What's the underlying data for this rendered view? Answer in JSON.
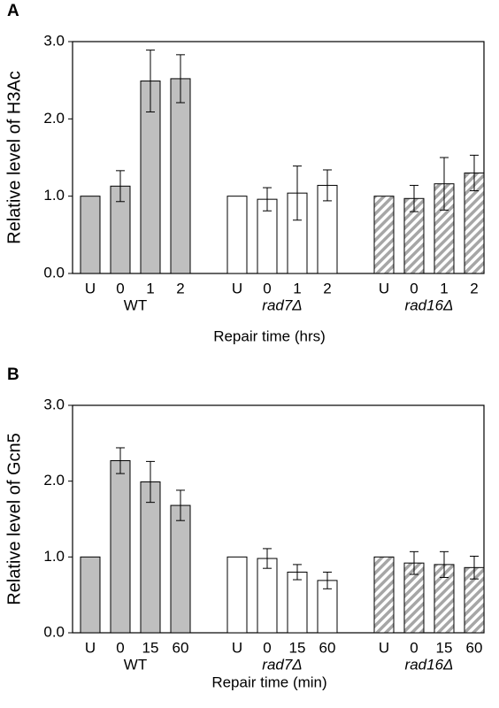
{
  "chart_data": [
    {
      "type": "bar",
      "panel": "A",
      "ylabel": "Relative level of H3Ac",
      "xlabel": "Repair time (hrs)",
      "ylim": [
        0,
        3
      ],
      "yticks": [
        {
          "value": 0,
          "label": "0.0"
        },
        {
          "value": 1,
          "label": "1.0"
        },
        {
          "value": 2,
          "label": "2.0"
        },
        {
          "value": 3,
          "label": "3.0"
        }
      ],
      "groups": [
        {
          "name": "WT",
          "color": "#bfbfbf",
          "hatch": false,
          "categories": [
            "U",
            "0",
            "1",
            "2"
          ],
          "values": [
            1.0,
            1.13,
            2.49,
            2.52
          ],
          "errors": [
            null,
            0.2,
            0.4,
            0.31
          ]
        },
        {
          "name": "rad7Δ",
          "color": "#ffffff",
          "hatch": false,
          "categories": [
            "U",
            "0",
            "1",
            "2"
          ],
          "values": [
            1.0,
            0.96,
            1.04,
            1.14
          ],
          "errors": [
            null,
            0.15,
            0.35,
            0.2
          ]
        },
        {
          "name": "rad16Δ",
          "color": "#a6a6a6",
          "hatch": true,
          "categories": [
            "U",
            "0",
            "1",
            "2"
          ],
          "values": [
            1.0,
            0.97,
            1.16,
            1.3
          ],
          "errors": [
            null,
            0.17,
            0.34,
            0.23
          ]
        }
      ]
    },
    {
      "type": "bar",
      "panel": "B",
      "ylabel": "Relative level of Gcn5",
      "xlabel": "Repair time (min)",
      "ylim": [
        0,
        3
      ],
      "yticks": [
        {
          "value": 0,
          "label": "0.0"
        },
        {
          "value": 1,
          "label": "1.0"
        },
        {
          "value": 2,
          "label": "2.0"
        },
        {
          "value": 3,
          "label": "3.0"
        }
      ],
      "groups": [
        {
          "name": "WT",
          "color": "#bfbfbf",
          "hatch": false,
          "categories": [
            "U",
            "0",
            "15",
            "60"
          ],
          "values": [
            1.0,
            2.27,
            1.99,
            1.68
          ],
          "errors": [
            null,
            0.17,
            0.27,
            0.2
          ]
        },
        {
          "name": "rad7Δ",
          "color": "#ffffff",
          "hatch": false,
          "categories": [
            "U",
            "0",
            "15",
            "60"
          ],
          "values": [
            1.0,
            0.98,
            0.8,
            0.69
          ],
          "errors": [
            null,
            0.13,
            0.1,
            0.11
          ]
        },
        {
          "name": "rad16Δ",
          "color": "#a6a6a6",
          "hatch": true,
          "categories": [
            "U",
            "0",
            "15",
            "60"
          ],
          "values": [
            1.0,
            0.92,
            0.9,
            0.86
          ],
          "errors": [
            null,
            0.15,
            0.17,
            0.15
          ]
        }
      ]
    }
  ]
}
